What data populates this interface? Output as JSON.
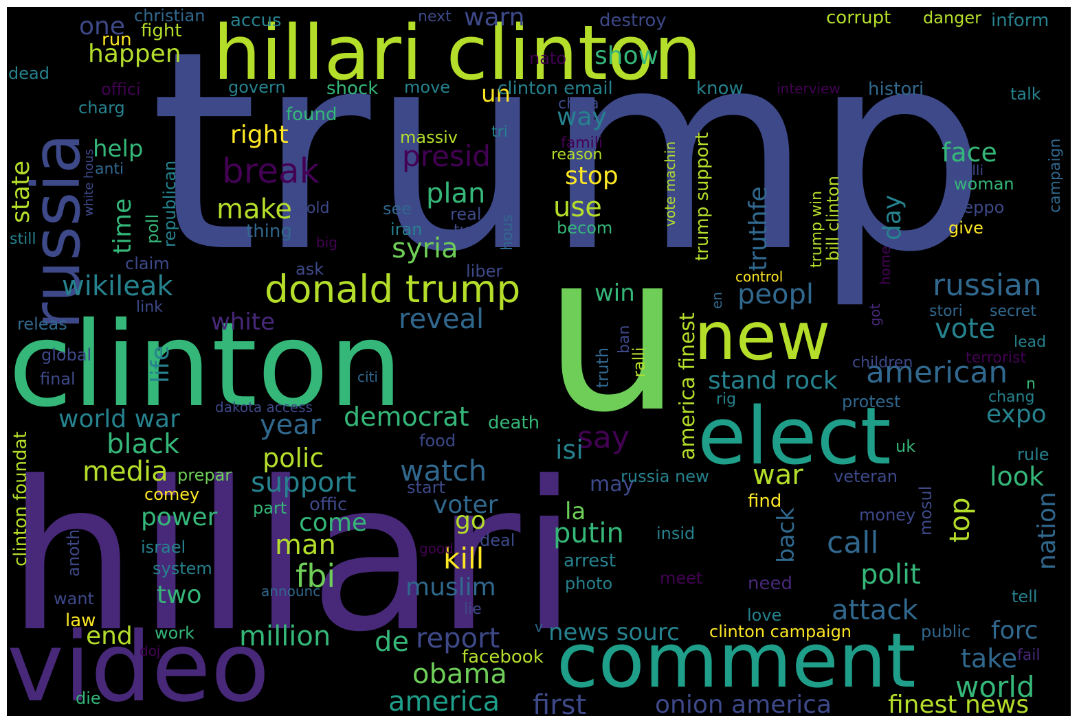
{
  "palette": {
    "background": "#000000",
    "colors": [
      "#440154",
      "#482878",
      "#3e4989",
      "#31688e",
      "#26828e",
      "#1f9e89",
      "#35b779",
      "#6ece58",
      "#b5de2b",
      "#fde725"
    ]
  },
  "words": [
    {
      "text": "trump",
      "color": "#3e4989"
    },
    {
      "text": "hillari",
      "color": "#482878"
    },
    {
      "text": "hillari clinton",
      "color": "#b5de2b"
    },
    {
      "text": "clinton",
      "color": "#35b779"
    },
    {
      "text": "u",
      "color": "#6ece58"
    },
    {
      "text": "video",
      "color": "#482878"
    },
    {
      "text": "comment",
      "color": "#1f9e89"
    },
    {
      "text": "elect",
      "color": "#1f9e89"
    },
    {
      "text": "new",
      "color": "#b5de2b"
    },
    {
      "text": "russia",
      "color": "#3e4989"
    },
    {
      "text": "donald trump",
      "color": "#b5de2b"
    },
    {
      "text": "break",
      "color": "#440154"
    },
    {
      "text": "presid",
      "color": "#440154"
    },
    {
      "text": "russian",
      "color": "#31688e"
    },
    {
      "text": "american",
      "color": "#31688e"
    },
    {
      "text": "say",
      "color": "#440154"
    },
    {
      "text": "syria",
      "color": "#6ece58"
    },
    {
      "text": "wikileak",
      "color": "#26828e"
    },
    {
      "text": "reveal",
      "color": "#31688e"
    },
    {
      "text": "make",
      "color": "#b5de2b"
    },
    {
      "text": "plan",
      "color": "#35b779"
    },
    {
      "text": "use",
      "color": "#b5de2b"
    },
    {
      "text": "face",
      "color": "#35b779"
    },
    {
      "text": "vote",
      "color": "#26828e"
    },
    {
      "text": "peopl",
      "color": "#31688e"
    },
    {
      "text": "win",
      "color": "#35b779"
    },
    {
      "text": "white",
      "color": "#482878"
    },
    {
      "text": "world war",
      "color": "#26828e"
    },
    {
      "text": "year",
      "color": "#31688e"
    },
    {
      "text": "democrat",
      "color": "#35b779"
    },
    {
      "text": "stand rock",
      "color": "#26828e"
    },
    {
      "text": "black",
      "color": "#35b779"
    },
    {
      "text": "media",
      "color": "#b5de2b"
    },
    {
      "text": "polic",
      "color": "#b5de2b"
    },
    {
      "text": "support",
      "color": "#26828e"
    },
    {
      "text": "watch",
      "color": "#31688e"
    },
    {
      "text": "isi",
      "color": "#26828e"
    },
    {
      "text": "war",
      "color": "#b5de2b"
    },
    {
      "text": "expo",
      "color": "#26828e"
    },
    {
      "text": "look",
      "color": "#35b779"
    },
    {
      "text": "power",
      "color": "#35b779"
    },
    {
      "text": "come",
      "color": "#35b779"
    },
    {
      "text": "go",
      "color": "#b5de2b"
    },
    {
      "text": "putin",
      "color": "#35b779"
    },
    {
      "text": "la",
      "color": "#6ece58"
    },
    {
      "text": "call",
      "color": "#31688e"
    },
    {
      "text": "top",
      "color": "#b5de2b"
    },
    {
      "text": "man",
      "color": "#b5de2b"
    },
    {
      "text": "fbi",
      "color": "#6ece58"
    },
    {
      "text": "kill",
      "color": "#fde725"
    },
    {
      "text": "muslim",
      "color": "#31688e"
    },
    {
      "text": "polit",
      "color": "#35b779"
    },
    {
      "text": "two",
      "color": "#35b779"
    },
    {
      "text": "voter",
      "color": "#31688e"
    },
    {
      "text": "attack",
      "color": "#31688e"
    },
    {
      "text": "million",
      "color": "#35b779"
    },
    {
      "text": "de",
      "color": "#35b779"
    },
    {
      "text": "report",
      "color": "#3e4989"
    },
    {
      "text": "news sourc",
      "color": "#26828e"
    },
    {
      "text": "forc",
      "color": "#31688e"
    },
    {
      "text": "end",
      "color": "#b5de2b"
    },
    {
      "text": "obama",
      "color": "#6ece58"
    },
    {
      "text": "take",
      "color": "#31688e"
    },
    {
      "text": "world",
      "color": "#35b779"
    },
    {
      "text": "america",
      "color": "#1f9e89"
    },
    {
      "text": "first",
      "color": "#3e4989"
    },
    {
      "text": "onion america",
      "color": "#3e4989"
    },
    {
      "text": "finest news",
      "color": "#b5de2b"
    },
    {
      "text": "happen",
      "color": "#b5de2b"
    },
    {
      "text": "one",
      "color": "#3e4989"
    },
    {
      "text": "warn",
      "color": "#3e4989"
    },
    {
      "text": "show",
      "color": "#35b779"
    },
    {
      "text": "un",
      "color": "#fde725"
    },
    {
      "text": "right",
      "color": "#fde725"
    },
    {
      "text": "help",
      "color": "#35b779"
    },
    {
      "text": "way",
      "color": "#26828e"
    },
    {
      "text": "stop",
      "color": "#fde725"
    },
    {
      "text": "time",
      "color": "#35b779"
    },
    {
      "text": "state",
      "color": "#b5de2b"
    },
    {
      "text": "life",
      "color": "#26828e"
    },
    {
      "text": "day",
      "color": "#26828e"
    },
    {
      "text": "truthfe",
      "color": "#31688e"
    },
    {
      "text": "america finest",
      "color": "#b5de2b"
    },
    {
      "text": "corrupt",
      "color": "#b5de2b"
    },
    {
      "text": "danger",
      "color": "#b5de2b"
    },
    {
      "text": "inform",
      "color": "#26828e"
    },
    {
      "text": "christian",
      "color": "#31688e"
    },
    {
      "text": "accus",
      "color": "#26828e"
    },
    {
      "text": "next",
      "color": "#3e4989"
    },
    {
      "text": "destroy",
      "color": "#3e4989"
    },
    {
      "text": "run",
      "color": "#fde725"
    },
    {
      "text": "fight",
      "color": "#b5de2b"
    },
    {
      "text": "dead",
      "color": "#26828e"
    },
    {
      "text": "nato",
      "color": "#440154"
    },
    {
      "text": "offici",
      "color": "#440154"
    },
    {
      "text": "govern",
      "color": "#26828e"
    },
    {
      "text": "shock",
      "color": "#35b779"
    },
    {
      "text": "move",
      "color": "#26828e"
    },
    {
      "text": "clinton email",
      "color": "#26828e"
    },
    {
      "text": "know",
      "color": "#26828e"
    },
    {
      "text": "interview",
      "color": "#440154"
    },
    {
      "text": "histori",
      "color": "#31688e"
    },
    {
      "text": "talk",
      "color": "#26828e"
    },
    {
      "text": "charg",
      "color": "#26828e"
    },
    {
      "text": "china",
      "color": "#3e4989"
    },
    {
      "text": "found",
      "color": "#35b779"
    },
    {
      "text": "massiv",
      "color": "#b5de2b"
    },
    {
      "text": "tri",
      "color": "#26828e"
    },
    {
      "text": "famili",
      "color": "#440154"
    },
    {
      "text": "reason",
      "color": "#b5de2b"
    },
    {
      "text": "anti",
      "color": "#31688e"
    },
    {
      "text": "republican",
      "color": "#26828e"
    },
    {
      "text": "gold",
      "color": "#3e4989"
    },
    {
      "text": "see",
      "color": "#31688e"
    },
    {
      "text": "real",
      "color": "#3e4989"
    },
    {
      "text": "iran",
      "color": "#26828e"
    },
    {
      "text": "turn",
      "color": "#3e4989"
    },
    {
      "text": "becom",
      "color": "#35b779"
    },
    {
      "text": "thing",
      "color": "#31688e"
    },
    {
      "text": "poll",
      "color": "#35b779"
    },
    {
      "text": "still",
      "color": "#26828e"
    },
    {
      "text": "big",
      "color": "#440154"
    },
    {
      "text": "hous",
      "color": "#31688e"
    },
    {
      "text": "claim",
      "color": "#3e4989"
    },
    {
      "text": "ask",
      "color": "#3e4989"
    },
    {
      "text": "liber",
      "color": "#3e4989"
    },
    {
      "text": "link",
      "color": "#3e4989"
    },
    {
      "text": "releas",
      "color": "#31688e"
    },
    {
      "text": "global",
      "color": "#3e4989"
    },
    {
      "text": "final",
      "color": "#3e4989"
    },
    {
      "text": "citi",
      "color": "#31688e"
    },
    {
      "text": "dakota access",
      "color": "#3e4989"
    },
    {
      "text": "campaign",
      "color": "#31688e"
    },
    {
      "text": "realli",
      "color": "#3e4989"
    },
    {
      "text": "woman",
      "color": "#35b779"
    },
    {
      "text": "aleppo",
      "color": "#3e4989"
    },
    {
      "text": "give",
      "color": "#fde725"
    },
    {
      "text": "home",
      "color": "#440154"
    },
    {
      "text": "stori",
      "color": "#31688e"
    },
    {
      "text": "secret",
      "color": "#31688e"
    },
    {
      "text": "lead",
      "color": "#26828e"
    },
    {
      "text": "terrorist",
      "color": "#440154"
    },
    {
      "text": "children",
      "color": "#3e4989"
    },
    {
      "text": "n",
      "color": "#35b779"
    },
    {
      "text": "chang",
      "color": "#26828e"
    },
    {
      "text": "protest",
      "color": "#31688e"
    },
    {
      "text": "rig",
      "color": "#26828e"
    },
    {
      "text": "control",
      "color": "#fde725"
    },
    {
      "text": "got",
      "color": "#482878"
    },
    {
      "text": "en",
      "color": "#31688e"
    },
    {
      "text": "truth",
      "color": "#31688e"
    },
    {
      "text": "ban",
      "color": "#3e4989"
    },
    {
      "text": "ralli",
      "color": "#b5de2b"
    },
    {
      "text": "trump win",
      "color": "#b5de2b"
    },
    {
      "text": "bill clinton",
      "color": "#b5de2b"
    },
    {
      "text": "vote machin",
      "color": "#b5de2b"
    },
    {
      "text": "trump support",
      "color": "#b5de2b"
    },
    {
      "text": "white hous",
      "color": "#3e4989"
    },
    {
      "text": "clinton foundat",
      "color": "#b5de2b"
    },
    {
      "text": "prepar",
      "color": "#6ece58"
    },
    {
      "text": "comey",
      "color": "#fde725"
    },
    {
      "text": "part",
      "color": "#35b779"
    },
    {
      "text": "offic",
      "color": "#3e4989"
    },
    {
      "text": "start",
      "color": "#3e4989"
    },
    {
      "text": "may",
      "color": "#3e4989"
    },
    {
      "text": "russia new",
      "color": "#26828e"
    },
    {
      "text": "find",
      "color": "#fde725"
    },
    {
      "text": "veteran",
      "color": "#3e4989"
    },
    {
      "text": "mosul",
      "color": "#3e4989"
    },
    {
      "text": "rule",
      "color": "#26828e"
    },
    {
      "text": "money",
      "color": "#3e4989"
    },
    {
      "text": "insid",
      "color": "#26828e"
    },
    {
      "text": "deal",
      "color": "#3e4989"
    },
    {
      "text": "arrest",
      "color": "#26828e"
    },
    {
      "text": "meet",
      "color": "#440154"
    },
    {
      "text": "need",
      "color": "#482878"
    },
    {
      "text": "photo",
      "color": "#26828e"
    },
    {
      "text": "israel",
      "color": "#26828e"
    },
    {
      "text": "anoth",
      "color": "#3e4989"
    },
    {
      "text": "system",
      "color": "#26828e"
    },
    {
      "text": "good",
      "color": "#440154"
    },
    {
      "text": "announc",
      "color": "#31688e"
    },
    {
      "text": "want",
      "color": "#3e4989"
    },
    {
      "text": "lie",
      "color": "#3e4989"
    },
    {
      "text": "law",
      "color": "#fde725"
    },
    {
      "text": "love",
      "color": "#26828e"
    },
    {
      "text": "tell",
      "color": "#26828e"
    },
    {
      "text": "work",
      "color": "#35b779"
    },
    {
      "text": "v",
      "color": "#31688e"
    },
    {
      "text": "clinton campaign",
      "color": "#fde725"
    },
    {
      "text": "public",
      "color": "#31688e"
    },
    {
      "text": "doj",
      "color": "#440154"
    },
    {
      "text": "facebook",
      "color": "#b5de2b"
    },
    {
      "text": "fail",
      "color": "#482878"
    },
    {
      "text": "die",
      "color": "#35b779"
    },
    {
      "text": "food",
      "color": "#3e4989"
    },
    {
      "text": "death",
      "color": "#35b779"
    },
    {
      "text": "uk",
      "color": "#35b779"
    },
    {
      "text": "nation",
      "color": "#31688e"
    },
    {
      "text": "back",
      "color": "#31688e"
    }
  ]
}
